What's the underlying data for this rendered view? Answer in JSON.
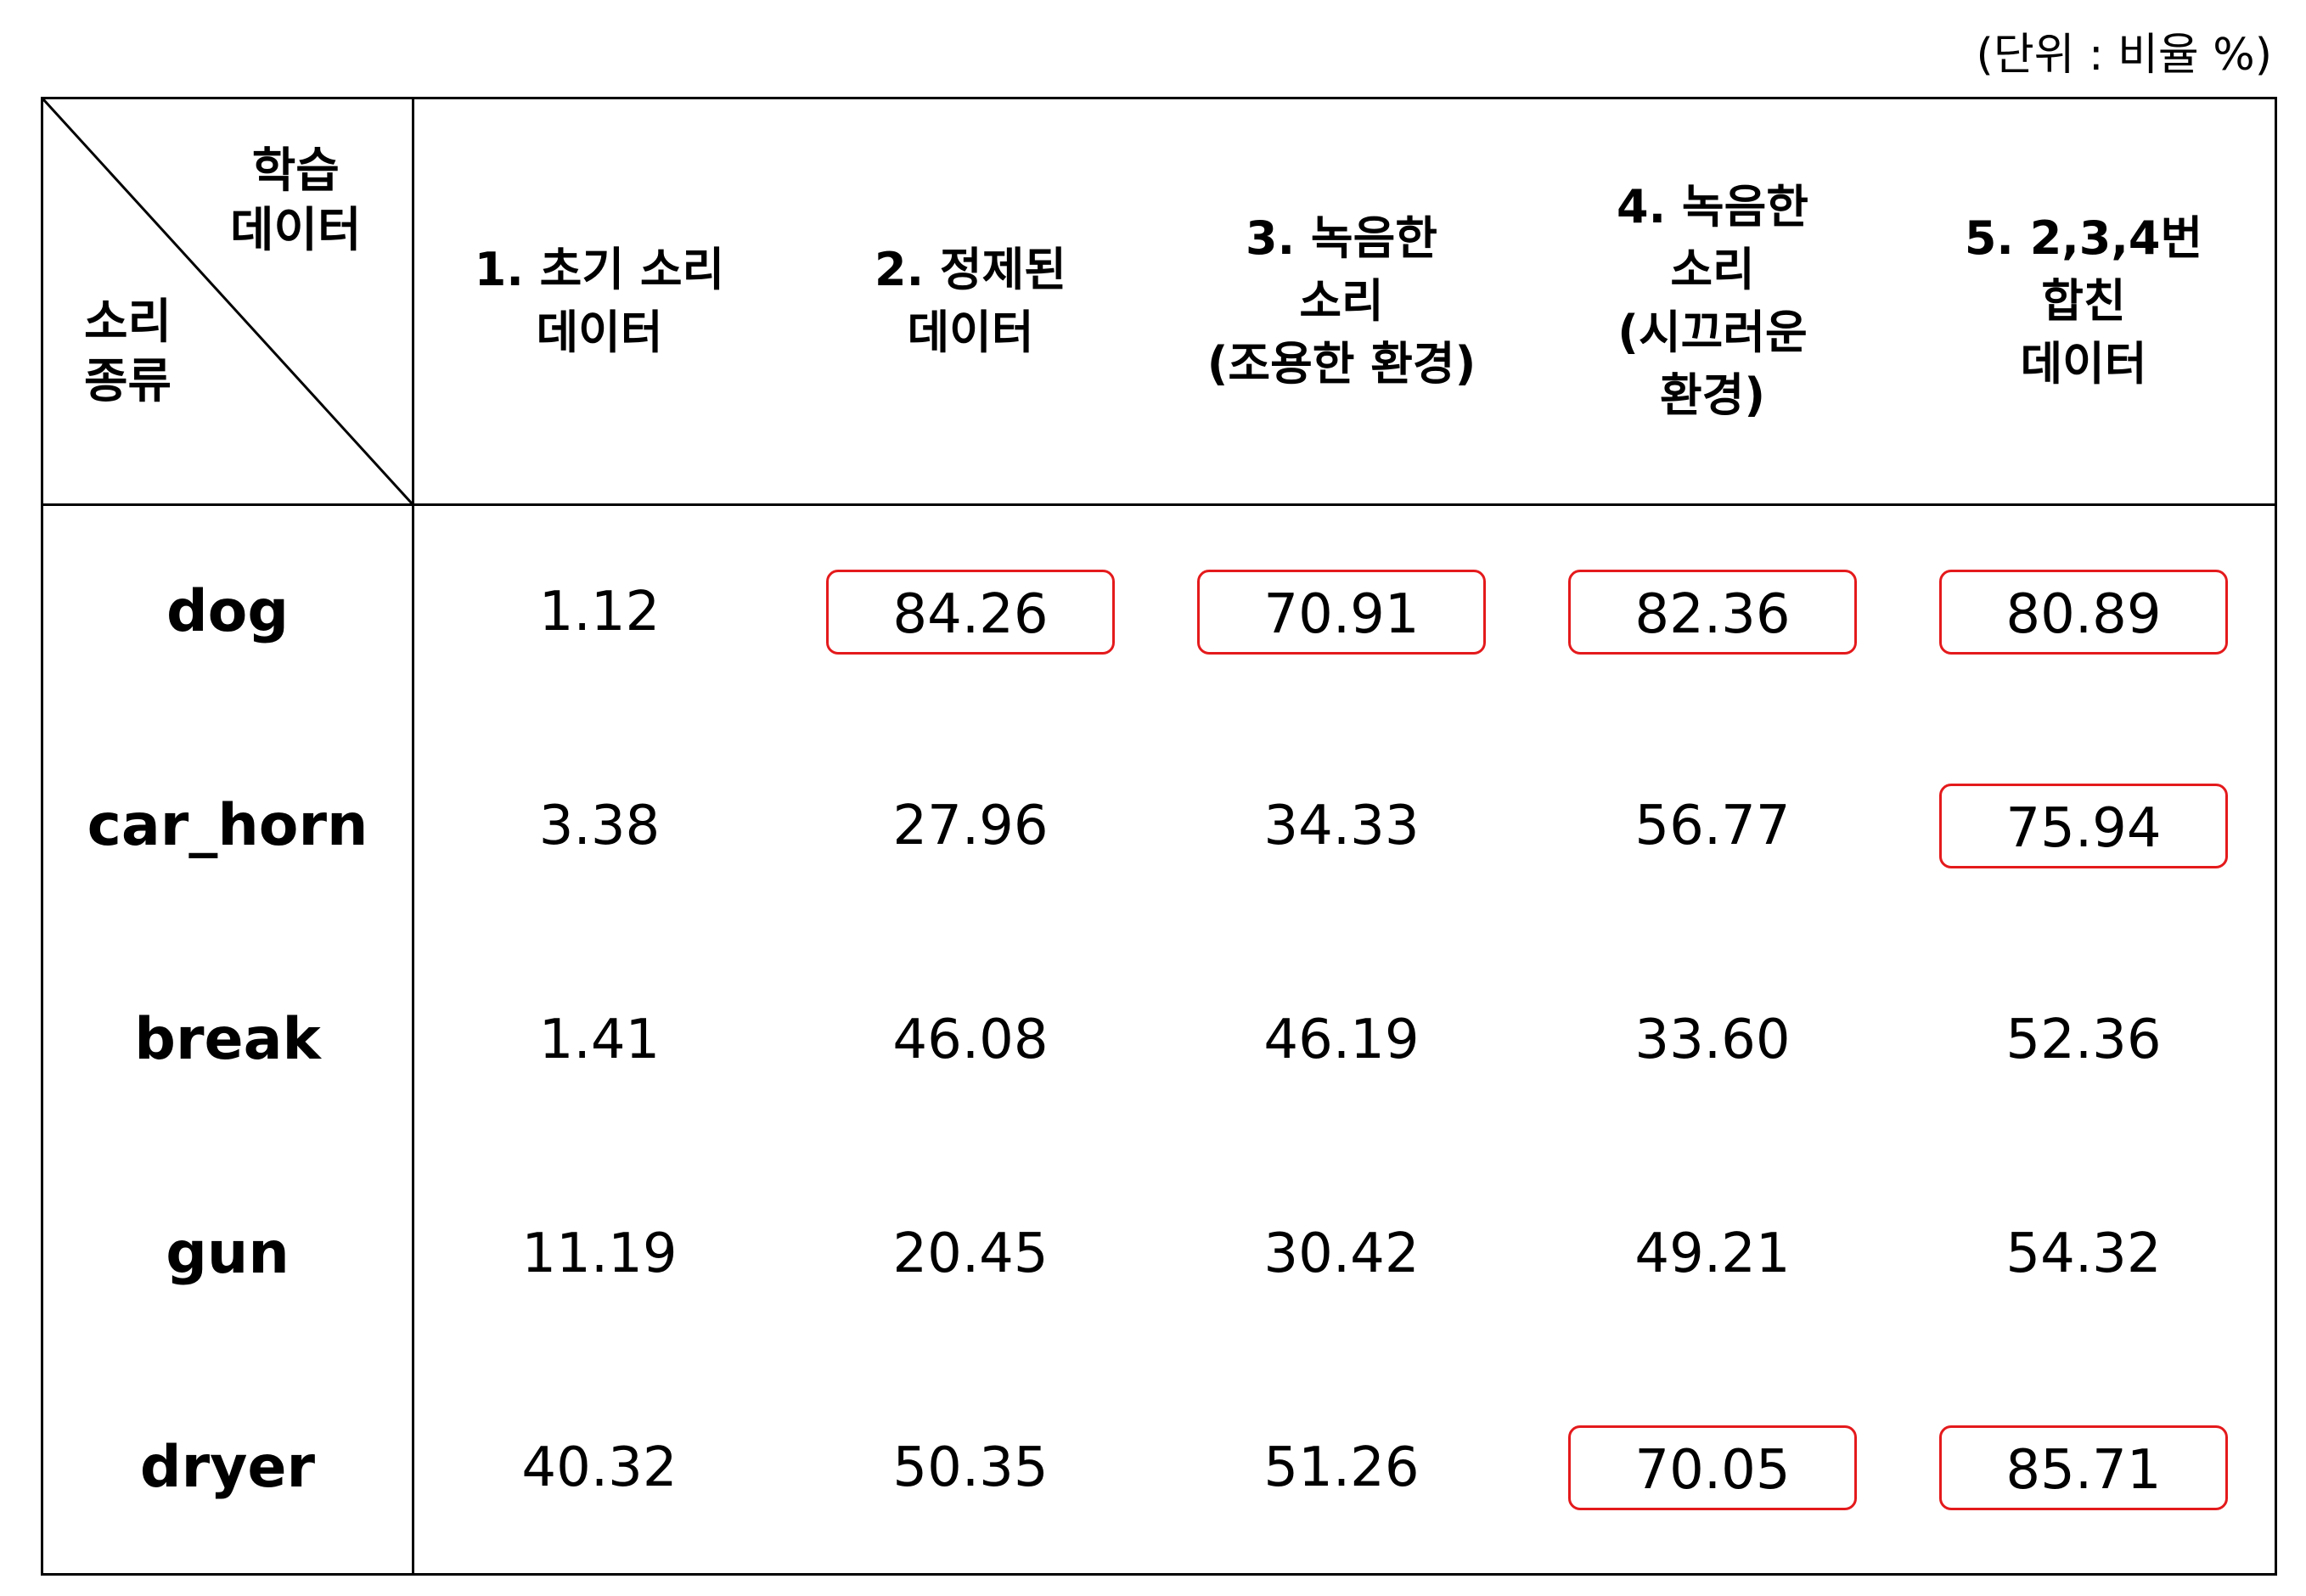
{
  "unit_note": "(단위 : 비율 %)",
  "corner": {
    "top_label": "학습\n데이터",
    "bottom_label": "소리\n종류"
  },
  "columns": [
    "1. 초기 소리\n데이터",
    "2. 정제된\n데이터",
    "3. 녹음한\n소리\n(조용한 환경)",
    "4. 녹음한\n소리\n(시끄러운\n환경)",
    "5. 2,3,4번\n합친\n데이터"
  ],
  "rows": [
    {
      "label": "dog",
      "values": [
        "1.12",
        "84.26",
        "70.91",
        "82.36",
        "80.89"
      ],
      "highlight": [
        false,
        true,
        true,
        true,
        true
      ]
    },
    {
      "label": "car_horn",
      "values": [
        "3.38",
        "27.96",
        "34.33",
        "56.77",
        "75.94"
      ],
      "highlight": [
        false,
        false,
        false,
        false,
        true
      ]
    },
    {
      "label": "break",
      "values": [
        "1.41",
        "46.08",
        "46.19",
        "33.60",
        "52.36"
      ],
      "highlight": [
        false,
        false,
        false,
        false,
        false
      ]
    },
    {
      "label": "gun",
      "values": [
        "11.19",
        "20.45",
        "30.42",
        "49.21",
        "54.32"
      ],
      "highlight": [
        false,
        false,
        false,
        false,
        false
      ]
    },
    {
      "label": "dryer",
      "values": [
        "40.32",
        "50.35",
        "51.26",
        "70.05",
        "85.71"
      ],
      "highlight": [
        false,
        false,
        false,
        true,
        true
      ]
    }
  ],
  "highlight_color": "#e41a1c"
}
